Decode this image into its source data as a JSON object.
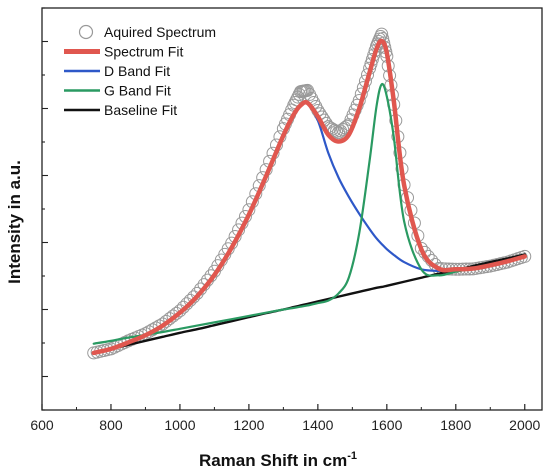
{
  "chart_data": {
    "type": "line",
    "title": "",
    "xlabel": "Raman Shift in cm",
    "xlabel_superscript": "-1",
    "ylabel": "Intensity in a.u.",
    "xlim": [
      600,
      2050
    ],
    "xticks": [
      600,
      800,
      1000,
      1200,
      1400,
      1600,
      1800,
      2000
    ],
    "ylim": [
      0,
      1.0
    ],
    "y_tick_labels_shown": false,
    "grid": false,
    "legend_position": "top-left",
    "x": [
      750,
      800,
      850,
      900,
      950,
      1000,
      1050,
      1100,
      1150,
      1200,
      1250,
      1300,
      1330,
      1350,
      1370,
      1400,
      1430,
      1460,
      1490,
      1520,
      1550,
      1570,
      1585,
      1600,
      1620,
      1650,
      1700,
      1750,
      1800,
      1850,
      1900,
      1950,
      2000
    ],
    "series": [
      {
        "name": "Aquired Spectrum",
        "style": "open-circle",
        "color": "#999999",
        "values": [
          0.142,
          0.152,
          0.172,
          0.19,
          0.214,
          0.247,
          0.29,
          0.345,
          0.415,
          0.498,
          0.598,
          0.7,
          0.758,
          0.792,
          0.795,
          0.745,
          0.705,
          0.69,
          0.71,
          0.77,
          0.85,
          0.905,
          0.935,
          0.88,
          0.76,
          0.56,
          0.402,
          0.352,
          0.35,
          0.351,
          0.358,
          0.368,
          0.382
        ]
      },
      {
        "name": "Spectrum Fit",
        "style": "line",
        "color": "#e0574f",
        "values": [
          0.142,
          0.152,
          0.168,
          0.186,
          0.21,
          0.242,
          0.283,
          0.336,
          0.404,
          0.486,
          0.582,
          0.683,
          0.735,
          0.758,
          0.764,
          0.73,
          0.685,
          0.668,
          0.685,
          0.75,
          0.84,
          0.898,
          0.918,
          0.888,
          0.77,
          0.56,
          0.4,
          0.352,
          0.35,
          0.352,
          0.36,
          0.37,
          0.382
        ]
      },
      {
        "name": "D Band Fit",
        "style": "line",
        "color": "#2e58c8",
        "values": [
          0.142,
          0.152,
          0.168,
          0.186,
          0.21,
          0.242,
          0.283,
          0.336,
          0.404,
          0.486,
          0.582,
          0.683,
          0.735,
          0.758,
          0.762,
          0.72,
          0.64,
          0.578,
          0.53,
          0.488,
          0.45,
          0.427,
          0.413,
          0.4,
          0.386,
          0.368,
          0.35,
          0.346,
          0.348,
          0.352,
          0.36,
          0.37,
          0.382
        ]
      },
      {
        "name": "G Band Fit",
        "style": "line",
        "color": "#2a9a62",
        "values": [
          0.165,
          0.172,
          0.18,
          0.187,
          0.194,
          0.202,
          0.21,
          0.218,
          0.226,
          0.234,
          0.242,
          0.25,
          0.254,
          0.257,
          0.26,
          0.266,
          0.272,
          0.29,
          0.33,
          0.44,
          0.62,
          0.755,
          0.81,
          0.78,
          0.68,
          0.47,
          0.35,
          0.335,
          0.344,
          0.352,
          0.36,
          0.37,
          0.382
        ]
      },
      {
        "name": "Baseline Fit",
        "style": "line",
        "color": "#111111",
        "values": [
          0.142,
          0.152,
          0.162,
          0.172,
          0.182,
          0.192,
          0.201,
          0.211,
          0.221,
          0.231,
          0.241,
          0.25,
          0.256,
          0.26,
          0.264,
          0.27,
          0.276,
          0.282,
          0.288,
          0.294,
          0.3,
          0.304,
          0.306,
          0.309,
          0.313,
          0.319,
          0.329,
          0.339,
          0.348,
          0.358,
          0.368,
          0.377,
          0.387
        ]
      }
    ]
  }
}
